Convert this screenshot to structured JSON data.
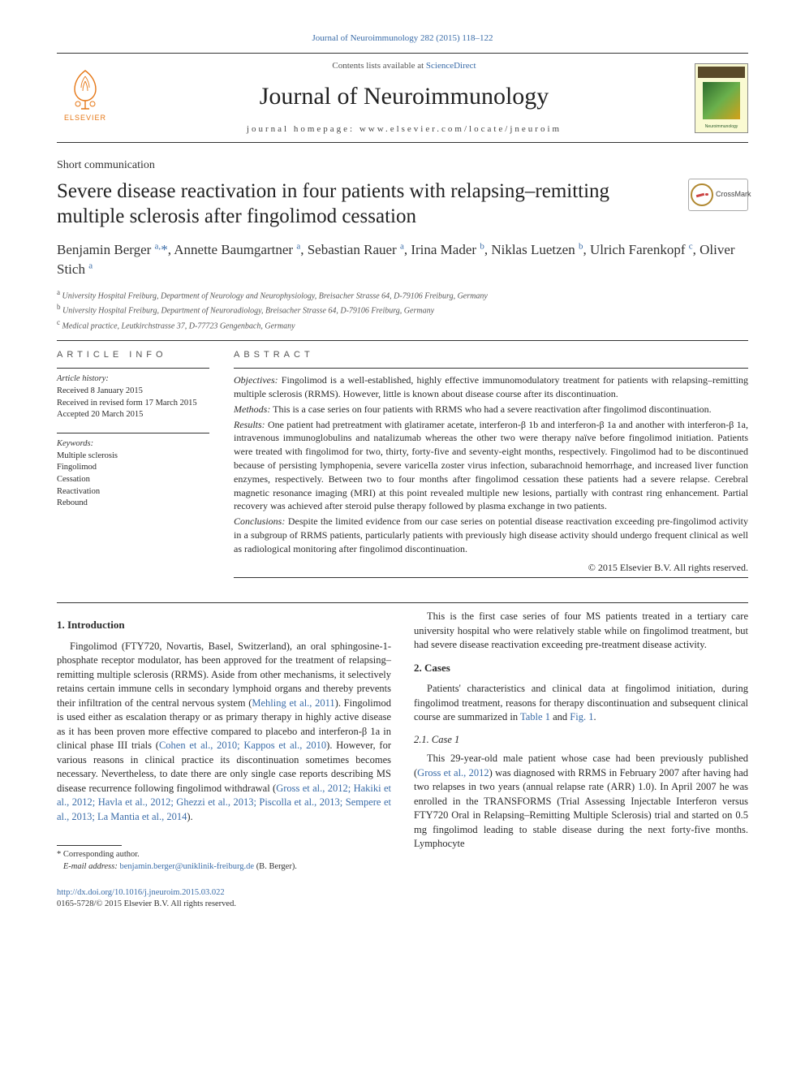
{
  "top_citation": "Journal of Neuroimmunology 282 (2015) 118–122",
  "header": {
    "contents_prefix": "Contents lists available at ",
    "contents_link": "ScienceDirect",
    "journal_name": "Journal of Neuroimmunology",
    "homepage": "journal homepage: www.elsevier.com/locate/jneuroim",
    "elsevier_word": "ELSEVIER",
    "cover_label": "Neuroimmunology"
  },
  "article_type": "Short communication",
  "title": "Severe disease reactivation in four patients with relapsing–remitting multiple sclerosis after fingolimod cessation",
  "crossmark_label": "CrossMark",
  "authors_html": "Benjamin Berger <sup>a,</sup><span class='corr'>*</span>, Annette Baumgartner <sup>a</sup>, Sebastian Rauer <sup>a</sup>, Irina Mader <sup>b</sup>, Niklas Luetzen <sup>b</sup>, Ulrich Farenkopf <sup>c</sup>, Oliver Stich <sup>a</sup>",
  "affiliations": {
    "a": "University Hospital Freiburg, Department of Neurology and Neurophysiology, Breisacher Strasse 64, D-79106 Freiburg, Germany",
    "b": "University Hospital Freiburg, Department of Neuroradiology, Breisacher Strasse 64, D-79106 Freiburg, Germany",
    "c": "Medical practice, Leutkirchstrasse 37, D-77723 Gengenbach, Germany"
  },
  "article_info": {
    "heading": "ARTICLE INFO",
    "history_label": "Article history:",
    "received": "Received 8 January 2015",
    "revised": "Received in revised form 17 March 2015",
    "accepted": "Accepted 20 March 2015",
    "keywords_label": "Keywords:",
    "keywords": [
      "Multiple sclerosis",
      "Fingolimod",
      "Cessation",
      "Reactivation",
      "Rebound"
    ]
  },
  "abstract": {
    "heading": "ABSTRACT",
    "objectives_label": "Objectives:",
    "objectives": "Fingolimod is a well-established, highly effective immunomodulatory treatment for patients with relapsing–remitting multiple sclerosis (RRMS). However, little is known about disease course after its discontinuation.",
    "methods_label": "Methods:",
    "methods": "This is a case series on four patients with RRMS who had a severe reactivation after fingolimod discontinuation.",
    "results_label": "Results:",
    "results": "One patient had pretreatment with glatiramer acetate, interferon-β 1b and interferon-β 1a and another with interferon-β 1a, intravenous immunoglobulins and natalizumab whereas the other two were therapy naïve before fingolimod initiation. Patients were treated with fingolimod for two, thirty, forty-five and seventy-eight months, respectively. Fingolimod had to be discontinued because of persisting lymphopenia, severe varicella zoster virus infection, subarachnoid hemorrhage, and increased liver function enzymes, respectively. Between two to four months after fingolimod cessation these patients had a severe relapse. Cerebral magnetic resonance imaging (MRI) at this point revealed multiple new lesions, partially with contrast ring enhancement. Partial recovery was achieved after steroid pulse therapy followed by plasma exchange in two patients.",
    "conclusions_label": "Conclusions:",
    "conclusions": "Despite the limited evidence from our case series on potential disease reactivation exceeding pre-fingolimod activity in a subgroup of RRMS patients, particularly patients with previously high disease activity should undergo frequent clinical as well as radiological monitoring after fingolimod discontinuation.",
    "copyright": "© 2015 Elsevier B.V. All rights reserved."
  },
  "body": {
    "intro_heading": "1. Introduction",
    "intro_p1a": "Fingolimod (FTY720, Novartis, Basel, Switzerland), an oral sphingosine-1-phosphate receptor modulator, has been approved for the treatment of relapsing–remitting multiple sclerosis (RRMS). Aside from other mechanisms, it selectively retains certain immune cells in secondary lymphoid organs and thereby prevents their infiltration of the central nervous system (",
    "intro_link1": "Mehling et al., 2011",
    "intro_p1b": "). Fingolimod is used either as escalation therapy or as primary therapy in highly active disease as it has been proven more effective compared to placebo and interferon-β 1a in clinical phase III trials (",
    "intro_link2": "Cohen et al., 2010; Kappos et al., 2010",
    "intro_p1c": "). However, for various reasons in clinical practice its discontinuation sometimes becomes necessary. Nevertheless, to date there are only single case reports describing MS disease recurrence following fingolimod withdrawal (",
    "intro_link3": "Gross et al., 2012; Hakiki et al., 2012; Havla et al., 2012; Ghezzi et al., 2013; Piscolla et al., 2013; Sempere et al., 2013; La Mantia et al., 2014",
    "intro_p1d": ").",
    "intro_p2": "This is the first case series of four MS patients treated in a tertiary care university hospital who were relatively stable while on fingolimod treatment, but had severe disease reactivation exceeding pre-treatment disease activity.",
    "cases_heading": "2. Cases",
    "cases_p1a": "Patients' characteristics and clinical data at fingolimod initiation, during fingolimod treatment, reasons for therapy discontinuation and subsequent clinical course are summarized in ",
    "cases_link1": "Table 1",
    "cases_mid": " and ",
    "cases_link2": "Fig. 1",
    "cases_end": ".",
    "case1_heading": "2.1. Case 1",
    "case1_p1a": "This 29-year-old male patient whose case had been previously published (",
    "case1_link1": "Gross et al., 2012",
    "case1_p1b": ") was diagnosed with RRMS in February 2007 after having had two relapses in two years (annual relapse rate (ARR) 1.0). In April 2007 he was enrolled in the TRANSFORMS (Trial Assessing Injectable Interferon versus FTY720 Oral in Relapsing–Remitting Multiple Sclerosis) trial and started on 0.5 mg fingolimod leading to stable disease during the next forty-five months. Lymphocyte"
  },
  "footnote": {
    "corr_label": "Corresponding author.",
    "email_label": "E-mail address:",
    "email": "benjamin.berger@uniklinik-freiburg.de",
    "email_who": "(B. Berger)."
  },
  "footer": {
    "doi": "http://dx.doi.org/10.1016/j.jneuroim.2015.03.022",
    "issn": "0165-5728/© 2015 Elsevier B.V. All rights reserved."
  },
  "colors": {
    "link": "#3a6ca8",
    "elsevier_orange": "#e67817",
    "text": "#2a2a2a",
    "rule": "#333333"
  }
}
